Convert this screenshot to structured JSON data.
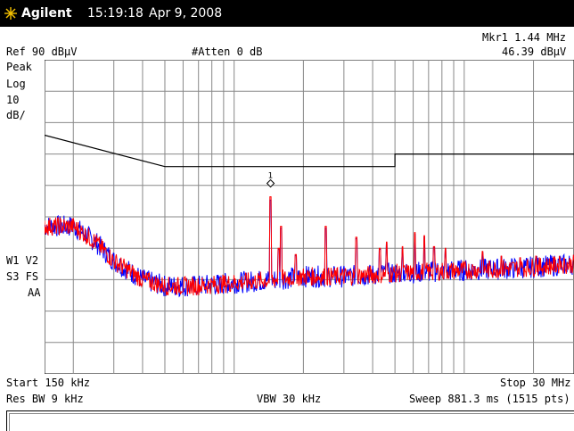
{
  "header": {
    "brand": "Agilent",
    "time": "15:19:18",
    "date": "Apr 9, 2008"
  },
  "readout": {
    "ref_level": "Ref 90 dBµV",
    "attenuation": "#Atten 0 dB",
    "marker_label": "Mkr1  1.44 MHz",
    "marker_value": "46.39 dBµV"
  },
  "left_labels": {
    "detector": "Peak",
    "scale_type": "Log",
    "scale_value": "10",
    "scale_unit": "dB/",
    "trace1": "W1  V2",
    "trace2": "S3  FS",
    "trace3": "AA",
    "asterisk": "*"
  },
  "footer": {
    "start": "Start 150 kHz",
    "stop": "Stop 30 MHz",
    "res_bw": "Res BW 9 kHz",
    "vbw": "VBW 30 kHz",
    "sweep": "Sweep 881.3 ms (1515 pts)"
  },
  "marker": {
    "number": "1",
    "freq_mhz": 1.44,
    "level_dbuv": 46.39
  },
  "chart_data": {
    "type": "line",
    "x_scale": "log",
    "xlim_mhz": [
      0.15,
      30
    ],
    "ylim_dbuv": [
      -10,
      90
    ],
    "grid": true,
    "colors": {
      "trace_red": "#ff0000",
      "trace_blue": "#0000ff",
      "limit": "#000000",
      "grid": "#888888"
    },
    "limit_line": {
      "x_mhz": [
        0.15,
        0.5,
        0.5,
        5,
        5,
        30
      ],
      "y_dbuv": [
        66,
        56,
        56,
        56,
        60,
        60
      ]
    },
    "noise_floor": {
      "x_mhz": [
        0.15,
        0.2,
        0.25,
        0.3,
        0.4,
        0.5,
        0.7,
        1.0,
        1.5,
        2,
        3,
        5,
        7,
        10,
        15,
        20,
        30
      ],
      "y_dbuv": [
        37,
        37,
        32,
        26,
        20,
        18,
        18,
        19,
        20,
        21,
        21,
        22,
        22.5,
        23,
        23.5,
        24,
        25
      ]
    },
    "spurs": {
      "x_mhz": [
        1.44,
        1.56,
        1.6,
        1.85,
        2.5,
        3.4,
        4.3,
        4.6,
        5.4,
        6.1,
        6.7,
        7.4,
        8.3,
        12.0,
        14.5,
        17.5,
        20.5,
        26.0
      ],
      "y_dbuv": [
        46.4,
        30.0,
        37.0,
        28.0,
        37.0,
        33.5,
        30.0,
        32.0,
        30.5,
        35.0,
        34.0,
        30.5,
        30.0,
        29.0,
        27.5,
        27.0,
        27.5,
        27.0
      ]
    }
  }
}
